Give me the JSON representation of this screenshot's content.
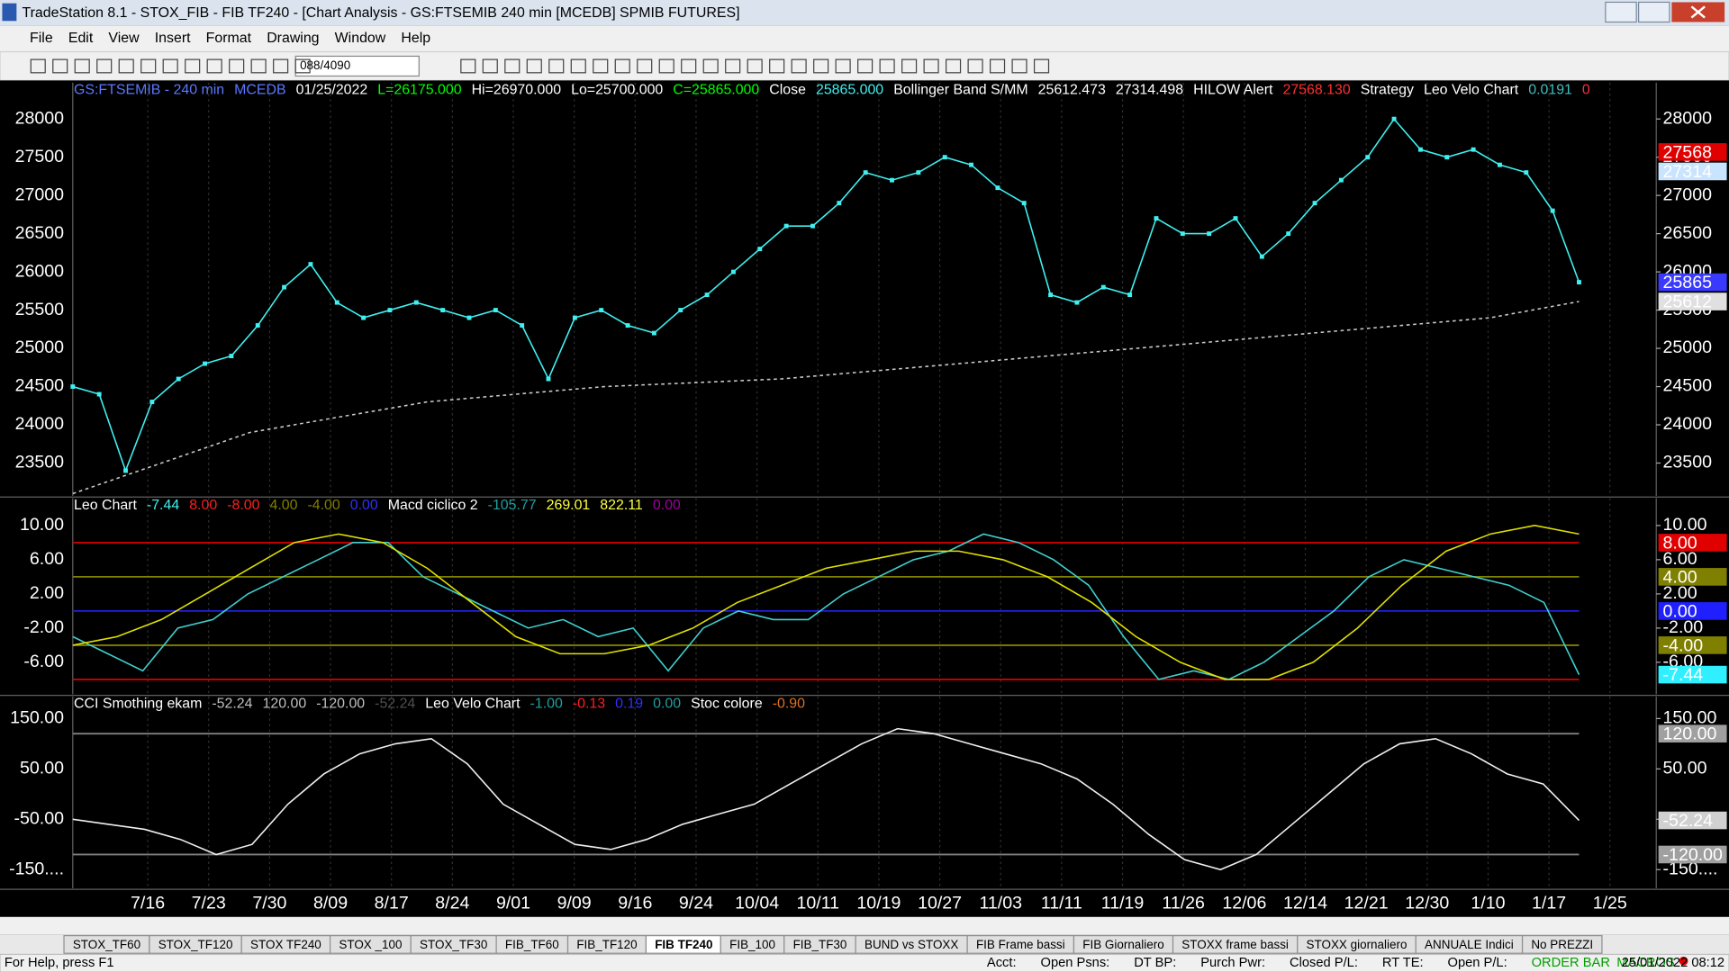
{
  "window": {
    "title": "TradeStation 8.1 - STOX_FIB - FIB TF240 - [Chart Analysis - GS:FTSEMIB  240 min  [MCEDB] SPMIB FUTURES]",
    "menu": [
      "File",
      "Edit",
      "View",
      "Insert",
      "Format",
      "Drawing",
      "Window",
      "Help"
    ],
    "symbol_box": "088/4090"
  },
  "x_axis": {
    "categories": [
      "7/16",
      "7/23",
      "7/30",
      "8/09",
      "8/17",
      "8/24",
      "9/01",
      "9/09",
      "9/16",
      "9/24",
      "10/04",
      "10/11",
      "10/19",
      "10/27",
      "11/03",
      "11/11",
      "11/19",
      "11/26",
      "12/06",
      "12/14",
      "12/21",
      "12/30",
      "1/10",
      "1/17",
      "1/25"
    ]
  },
  "chart_data": [
    {
      "type": "line",
      "header": [
        {
          "text": "GS:FTSEMIB - 240 min",
          "color": "#5a78ff"
        },
        {
          "text": "MCEDB",
          "color": "#5a78ff"
        },
        {
          "text": "01/25/2022",
          "color": "#ffffff"
        },
        {
          "text": "L=26175.000",
          "color": "#00ff00"
        },
        {
          "text": "Hi=26970.000",
          "color": "#ffffff"
        },
        {
          "text": "Lo=25700.000",
          "color": "#ffffff"
        },
        {
          "text": "C=25865.000",
          "color": "#00ff00"
        },
        {
          "text": "Close",
          "color": "#ffffff"
        },
        {
          "text": "25865.000",
          "color": "#40f0f0"
        },
        {
          "text": "Bollinger Band S/MM",
          "color": "#ffffff"
        },
        {
          "text": "25612.473",
          "color": "#ffffff"
        },
        {
          "text": "27314.498",
          "color": "#ffffff"
        },
        {
          "text": "HILOW Alert",
          "color": "#ffffff"
        },
        {
          "text": "27568.130",
          "color": "#ff3030"
        },
        {
          "text": "Strategy",
          "color": "#ffffff"
        },
        {
          "text": "Leo Velo Chart",
          "color": "#ffffff"
        },
        {
          "text": "0.0191",
          "color": "#40c0c0"
        },
        {
          "text": "0",
          "color": "#ff3030"
        }
      ],
      "ylim": [
        23070,
        28475
      ],
      "yticks": [
        23500,
        24000,
        24500,
        25000,
        25500,
        26000,
        26500,
        27000,
        27500,
        28000
      ],
      "series": [
        {
          "color": "#40f0f0",
          "style": "dots",
          "values": [
            24500,
            24400,
            23400,
            24300,
            24600,
            24800,
            24900,
            25300,
            25800,
            26100,
            25600,
            25400,
            25500,
            25600,
            25500,
            25400,
            25500,
            25300,
            24600,
            25400,
            25500,
            25300,
            25200,
            25500,
            25700,
            26000,
            26300,
            26600,
            26600,
            26900,
            27300,
            27200,
            27300,
            27500,
            27400,
            27100,
            26900,
            25700,
            25600,
            25800,
            25700,
            26700,
            26500,
            26500,
            26700,
            26200,
            26500,
            26900,
            27200,
            27500,
            28000,
            27600,
            27500,
            27600,
            27400,
            27300,
            26800,
            25865
          ]
        },
        {
          "color": "#c8c8c8",
          "style": "dashed",
          "values": [
            23100,
            23500,
            23900,
            24100,
            24300,
            24400,
            24500,
            24550,
            24600,
            24700,
            24800,
            24900,
            25000,
            25100,
            25200,
            25300,
            25400,
            25612
          ]
        }
      ],
      "levels": [],
      "price_labels": [
        {
          "value": 27568,
          "color": "#e00000",
          "text_color": "#200000"
        },
        {
          "value": 27314,
          "color": "#c8e4ff",
          "text_color": "#000000"
        },
        {
          "value": 25865,
          "color": "#3a3aff",
          "text_color": "#ffffff"
        },
        {
          "value": 25612,
          "color": "#e0e0e0",
          "text_color": "#000000"
        }
      ]
    },
    {
      "type": "line",
      "header": [
        {
          "text": "Leo Chart",
          "color": "#ffffff"
        },
        {
          "text": "-7.44",
          "color": "#40f0f0"
        },
        {
          "text": "8.00",
          "color": "#ff2020"
        },
        {
          "text": "-8.00",
          "color": "#ff2020"
        },
        {
          "text": "4.00",
          "color": "#808000"
        },
        {
          "text": "-4.00",
          "color": "#808000"
        },
        {
          "text": "0.00",
          "color": "#3030ff"
        },
        {
          "text": "Macd ciclico 2",
          "color": "#ffffff"
        },
        {
          "text": "-105.77",
          "color": "#20a0a0"
        },
        {
          "text": "269.01",
          "color": "#ffff40"
        },
        {
          "text": "822.11",
          "color": "#ffff40"
        },
        {
          "text": "0.00",
          "color": "#a000a0"
        }
      ],
      "ylim": [
        -9.74,
        13.2
      ],
      "yticks": [
        {
          "value": -6,
          "label": "-6.00"
        },
        {
          "value": -2,
          "label": "-2.00"
        },
        {
          "value": 2,
          "label": "2.00"
        },
        {
          "value": 6,
          "label": "6.00"
        },
        {
          "value": 10,
          "label": "10.00"
        }
      ],
      "series": [
        {
          "color": "#40d0d0",
          "style": "solid",
          "values": [
            -3,
            -5,
            -7,
            -2,
            -1,
            2,
            4,
            6,
            8,
            8,
            4,
            2,
            0,
            -2,
            -1,
            -3,
            -2,
            -7,
            -2,
            0,
            -1,
            -1,
            2,
            4,
            6,
            7,
            9,
            8,
            6,
            3,
            -3,
            -8,
            -7,
            -8,
            -6,
            -3,
            0,
            4,
            6,
            5,
            4,
            3,
            1,
            -7.44
          ]
        },
        {
          "color": "#e0e000",
          "style": "solid",
          "values": [
            -4,
            -3,
            -1,
            2,
            5,
            8,
            9,
            8,
            5,
            1,
            -3,
            -5,
            -5,
            -4,
            -2,
            1,
            3,
            5,
            6,
            7,
            7,
            6,
            4,
            1,
            -3,
            -6,
            -8,
            -8,
            -6,
            -2,
            3,
            7,
            9,
            10,
            9
          ]
        }
      ],
      "levels": [
        {
          "value": 8,
          "color": "#d00000"
        },
        {
          "value": 4,
          "color": "#808000"
        },
        {
          "value": 0,
          "color": "#2020e0"
        },
        {
          "value": -4,
          "color": "#808000"
        },
        {
          "value": -8,
          "color": "#d00000"
        }
      ],
      "price_labels": [
        {
          "value": 8,
          "label": "8.00",
          "color": "#e00000",
          "text_color": "#200000"
        },
        {
          "value": 4,
          "label": "4.00",
          "color": "#808000",
          "text_color": "#000000"
        },
        {
          "value": 0,
          "label": "0.00",
          "color": "#2020ff",
          "text_color": "#ffffff"
        },
        {
          "value": -4,
          "label": "-4.00",
          "color": "#808000",
          "text_color": "#000000"
        },
        {
          "value": -7.44,
          "label": "-7.44",
          "color": "#30f0ff",
          "text_color": "#000000"
        }
      ]
    },
    {
      "type": "line",
      "header": [
        {
          "text": "CCI Smothing ekam",
          "color": "#ffffff"
        },
        {
          "text": "-52.24",
          "color": "#c0c0c0"
        },
        {
          "text": "120.00",
          "color": "#c0c0c0"
        },
        {
          "text": "-120.00",
          "color": "#c0c0c0"
        },
        {
          "text": "-52.24",
          "color": "#505050"
        },
        {
          "text": "Leo Velo Chart",
          "color": "#ffffff"
        },
        {
          "text": "-1.00",
          "color": "#20a0a0"
        },
        {
          "text": "-0.13",
          "color": "#ff2020"
        },
        {
          "text": "0.19",
          "color": "#3030ff"
        },
        {
          "text": "0.00",
          "color": "#20a0a0"
        },
        {
          "text": "Stoc colore",
          "color": "#ffffff"
        },
        {
          "text": "-0.90",
          "color": "#e07020"
        }
      ],
      "ylim": [
        -187,
        193.8
      ],
      "yticks": [
        {
          "value": -150,
          "label": "-150...."
        },
        {
          "value": -50,
          "label": "-50.00"
        },
        {
          "value": 50,
          "label": "50.00"
        },
        {
          "value": 150,
          "label": "150.00"
        }
      ],
      "series": [
        {
          "color": "#f0f0f0",
          "style": "solid",
          "values": [
            -50,
            -60,
            -70,
            -90,
            -120,
            -100,
            -20,
            40,
            80,
            100,
            110,
            60,
            -20,
            -60,
            -100,
            -110,
            -90,
            -60,
            -40,
            -20,
            20,
            60,
            100,
            130,
            120,
            100,
            80,
            60,
            30,
            -20,
            -80,
            -130,
            -150,
            -120,
            -60,
            0,
            60,
            100,
            110,
            80,
            40,
            20,
            -52.24
          ]
        }
      ],
      "levels": [
        {
          "value": 120,
          "color": "#808080"
        },
        {
          "value": -120,
          "color": "#808080"
        }
      ],
      "price_labels": [
        {
          "value": 120,
          "label": "120.00",
          "color": "#a0a0a0",
          "text_color": "#000000"
        },
        {
          "value": -52.24,
          "label": "-52.24",
          "color": "#d0d0d0",
          "text_color": "#000000"
        },
        {
          "value": -120,
          "label": "-120.00",
          "color": "#a0a0a0",
          "text_color": "#000000"
        }
      ]
    }
  ],
  "tabs": [
    "STOX_TF60",
    "STOX_TF120",
    "STOX TF240",
    "STOX _100",
    "STOX_TF30",
    "FIB_TF60",
    "FIB_TF120",
    "FIB TF240",
    "FIB_100",
    "FIB_TF30",
    "BUND vs STOXX",
    "FIB Frame bassi",
    "FIB Giornaliero",
    "STOXX frame bassi",
    "STOXX giornaliero",
    "ANNUALE Indici",
    "No PREZZI"
  ],
  "active_tab": 7,
  "status": {
    "help": "For Help, press F1",
    "fields": [
      "Acct:",
      "Open Psns:",
      "DT BP:",
      "Purch Pwr:",
      "Closed P/L:",
      "RT TE:",
      "Open P/L:"
    ],
    "order_bar": "ORDER BAR",
    "macros": "MACROS",
    "datetime": "25/01/2022 08:12"
  }
}
